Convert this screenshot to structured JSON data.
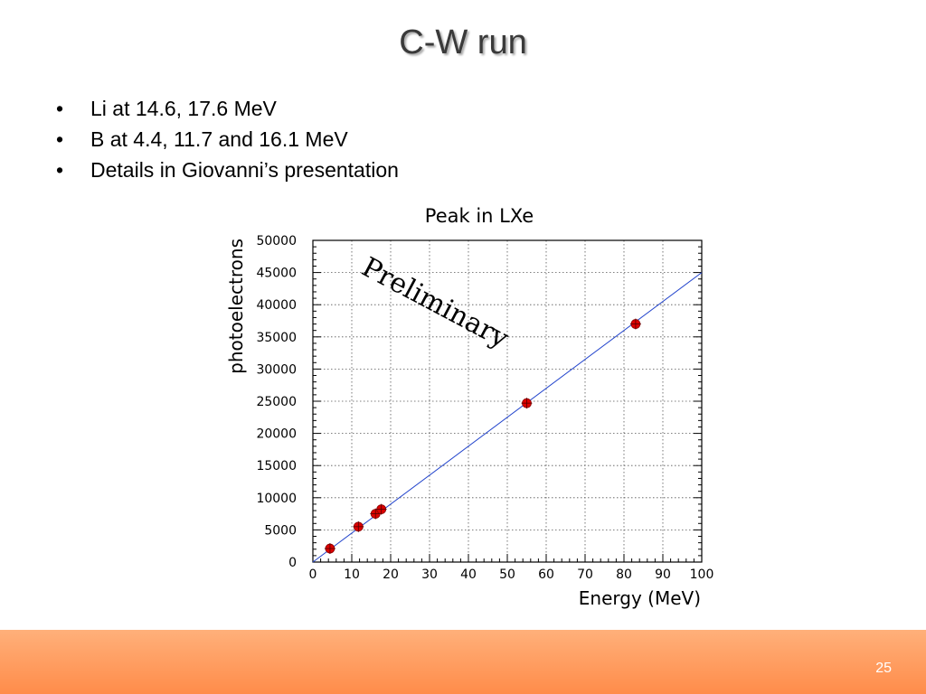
{
  "slide": {
    "title": "C-W run",
    "bullets": [
      "Li at 14.6, 17.6 MeV",
      "B at 4.4, 11.7 and 16.1 MeV",
      "Details in Giovanni’s presentation"
    ],
    "bullet_marker": "•",
    "page_number": "25"
  },
  "chart_data": {
    "type": "scatter",
    "title": "Peak in LXe",
    "xlabel": "Energy (MeV)",
    "ylabel": "photoelectrons",
    "annotation": "Preliminary",
    "xlim": [
      0,
      100
    ],
    "ylim": [
      0,
      50000
    ],
    "xticks": [
      "0",
      "10",
      "20",
      "30",
      "40",
      "50",
      "60",
      "70",
      "80",
      "90",
      "100"
    ],
    "yticks": [
      "0",
      "5000",
      "10000",
      "15000",
      "20000",
      "25000",
      "30000",
      "35000",
      "40000",
      "45000",
      "50000"
    ],
    "grid": true,
    "series": [
      {
        "points": [
          {
            "x": 4.4,
            "y": 2100
          },
          {
            "x": 11.7,
            "y": 5500
          },
          {
            "x": 16.1,
            "y": 7500
          },
          {
            "x": 17.6,
            "y": 8200
          },
          {
            "x": 55,
            "y": 24700
          },
          {
            "x": 83,
            "y": 37000
          }
        ],
        "color": "#dd0000"
      }
    ],
    "fit_line": {
      "x": [
        0,
        100
      ],
      "y": [
        0,
        45000
      ],
      "color": "#2244cc"
    }
  },
  "colors": {
    "footer": "#ff9a5a",
    "grid": "#555555",
    "frame": "#000000"
  }
}
